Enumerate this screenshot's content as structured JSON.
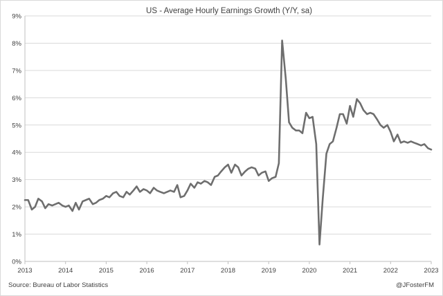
{
  "chart_data": {
    "type": "line",
    "title": "US - Average Hourly Earnings Growth (Y/Y, sa)",
    "source": "Source: Bureau of Labor Statistics",
    "credit": "@JFosterFM",
    "y_tick_labels": [
      "0%",
      "1%",
      "2%",
      "3%",
      "4%",
      "5%",
      "6%",
      "7%",
      "8%",
      "9%"
    ],
    "x_tick_labels": [
      "2013",
      "2014",
      "2015",
      "2016",
      "2017",
      "2018",
      "2019",
      "2020",
      "2021",
      "2022",
      "2023"
    ],
    "ylim": [
      0,
      9
    ],
    "xlim": [
      2013.0,
      2023.0
    ],
    "grid": true,
    "line_color": "#6e6e6e",
    "grid_color": "#d9d9d9",
    "series": [
      {
        "x": [
          2013.0,
          2013.08,
          2013.17,
          2013.25,
          2013.33,
          2013.42,
          2013.5,
          2013.58,
          2013.67,
          2013.75,
          2013.83,
          2013.92,
          2014.0,
          2014.08,
          2014.17,
          2014.25,
          2014.33,
          2014.42,
          2014.5,
          2014.58,
          2014.67,
          2014.75,
          2014.83,
          2014.92,
          2015.0,
          2015.08,
          2015.17,
          2015.25,
          2015.33,
          2015.42,
          2015.5,
          2015.58,
          2015.67,
          2015.75,
          2015.83,
          2015.92,
          2016.0,
          2016.08,
          2016.17,
          2016.25,
          2016.33,
          2016.42,
          2016.5,
          2016.58,
          2016.67,
          2016.75,
          2016.83,
          2016.92,
          2017.0,
          2017.08,
          2017.17,
          2017.25,
          2017.33,
          2017.42,
          2017.5,
          2017.58,
          2017.67,
          2017.75,
          2017.83,
          2017.92,
          2018.0,
          2018.08,
          2018.17,
          2018.25,
          2018.33,
          2018.42,
          2018.5,
          2018.58,
          2018.67,
          2018.75,
          2018.83,
          2018.92,
          2019.0,
          2019.08,
          2019.17,
          2019.25,
          2019.33,
          2019.42,
          2019.5,
          2019.58,
          2019.67,
          2019.75,
          2019.83,
          2019.92,
          2020.0,
          2020.08,
          2020.17,
          2020.25,
          2020.33,
          2020.42,
          2020.5,
          2020.58,
          2020.67,
          2020.75,
          2020.83,
          2020.92,
          2021.0,
          2021.08,
          2021.17,
          2021.25,
          2021.33,
          2021.42,
          2021.5,
          2021.58,
          2021.67,
          2021.75,
          2021.83,
          2021.92,
          2022.0,
          2022.08,
          2022.17,
          2022.25,
          2022.33,
          2022.42,
          2022.5,
          2022.58,
          2022.67,
          2022.75,
          2022.83,
          2022.92,
          2023.0
        ],
        "y": [
          2.25,
          2.25,
          1.9,
          2.0,
          2.3,
          2.2,
          1.95,
          2.1,
          2.05,
          2.1,
          2.15,
          2.05,
          2.0,
          2.05,
          1.85,
          2.15,
          1.9,
          2.2,
          2.25,
          2.3,
          2.1,
          2.15,
          2.25,
          2.3,
          2.4,
          2.35,
          2.5,
          2.55,
          2.4,
          2.35,
          2.55,
          2.45,
          2.6,
          2.75,
          2.55,
          2.65,
          2.6,
          2.5,
          2.7,
          2.6,
          2.55,
          2.5,
          2.55,
          2.6,
          2.55,
          2.8,
          2.35,
          2.4,
          2.6,
          2.85,
          2.7,
          2.9,
          2.85,
          2.95,
          2.9,
          2.8,
          3.1,
          3.15,
          3.3,
          3.45,
          3.55,
          3.25,
          3.55,
          3.45,
          3.15,
          3.3,
          3.4,
          3.45,
          3.4,
          3.15,
          3.25,
          3.3,
          2.95,
          3.05,
          3.1,
          3.6,
          8.1,
          6.7,
          5.1,
          4.9,
          4.8,
          4.8,
          4.7,
          5.45,
          5.25,
          5.3,
          4.3,
          0.62,
          2.3,
          3.95,
          4.3,
          4.4,
          4.9,
          5.4,
          5.4,
          5.05,
          5.7,
          5.3,
          5.95,
          5.8,
          5.55,
          5.4,
          5.45,
          5.4,
          5.2,
          5.0,
          4.9,
          5.0,
          4.75,
          4.4,
          4.65,
          4.35,
          4.4,
          4.35,
          4.4,
          4.35,
          4.3,
          4.25,
          4.3,
          4.15,
          4.1
        ]
      }
    ]
  }
}
